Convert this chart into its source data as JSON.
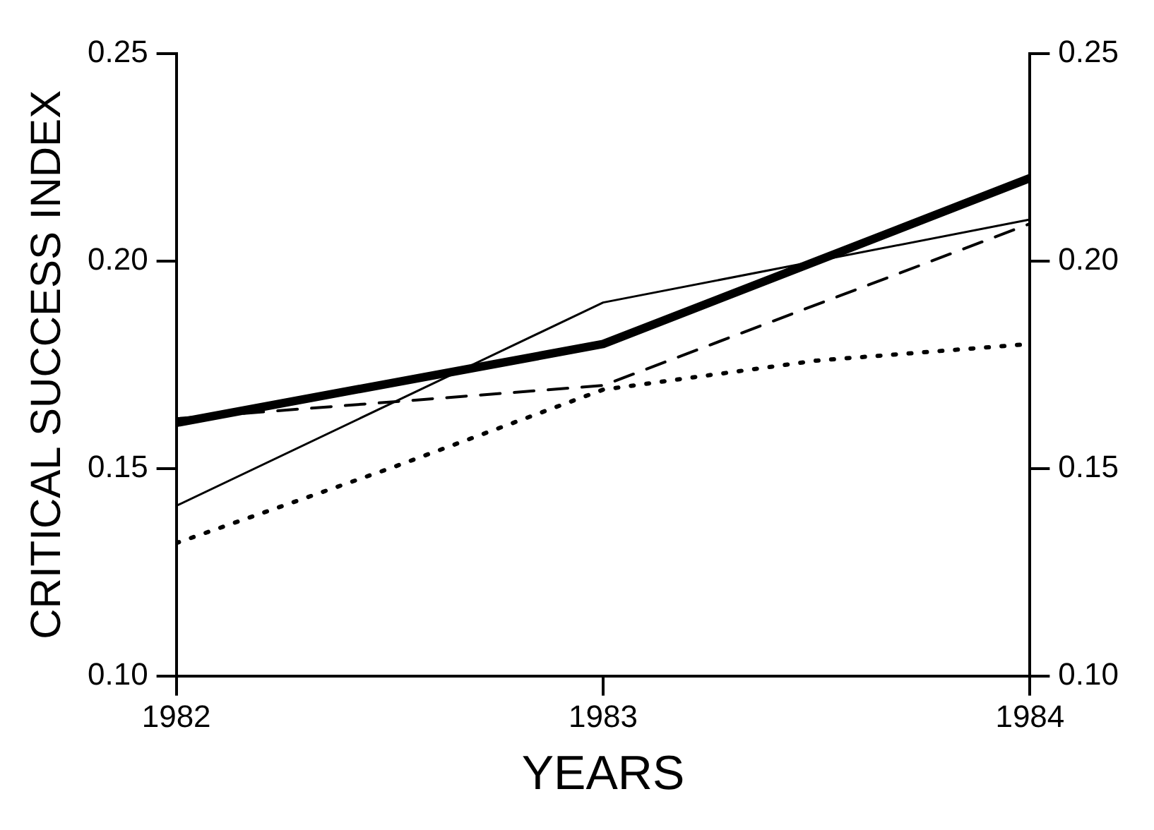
{
  "chart_data": {
    "type": "line",
    "xlabel": "YEARS",
    "ylabel": "CRITICAL SUCCESS INDEX",
    "xlim": [
      1982,
      1984
    ],
    "xticks": [
      1982,
      1983,
      1984
    ],
    "ylim": [
      0.1,
      0.25
    ],
    "yticks": [
      {
        "value": 0.1,
        "label": "0.10"
      },
      {
        "value": 0.15,
        "label": "0.15"
      },
      {
        "value": 0.2,
        "label": "0.20"
      },
      {
        "value": 0.25,
        "label": "0.25"
      }
    ],
    "y2lim": [
      0.1,
      0.25
    ],
    "y2ticks": [
      {
        "value": 0.1,
        "label": "0.10"
      },
      {
        "value": 0.15,
        "label": "0.15"
      },
      {
        "value": 0.2,
        "label": "0.20"
      },
      {
        "value": 0.25,
        "label": "0.25"
      }
    ],
    "grid": false,
    "legend": false,
    "marker": "none",
    "series": [
      {
        "color": "#000000",
        "line_style": "solid",
        "x": [
          1982,
          1983,
          1984
        ],
        "values": [
          0.161,
          0.18,
          0.22
        ]
      },
      {
        "color": "#000000",
        "line_style": "solid",
        "x": [
          1982,
          1983,
          1984
        ],
        "values": [
          0.141,
          0.19,
          0.21
        ]
      },
      {
        "color": "#000000",
        "line_style": "dashed",
        "x": [
          1982,
          1983,
          1984
        ],
        "values": [
          0.162,
          0.17,
          0.209
        ]
      },
      {
        "color": "#000000",
        "line_style": "dotted",
        "x": [
          1982,
          1982.5,
          1983,
          1983.5,
          1984
        ],
        "values": [
          0.132,
          0.15,
          0.169,
          0.176,
          0.18
        ]
      }
    ]
  }
}
